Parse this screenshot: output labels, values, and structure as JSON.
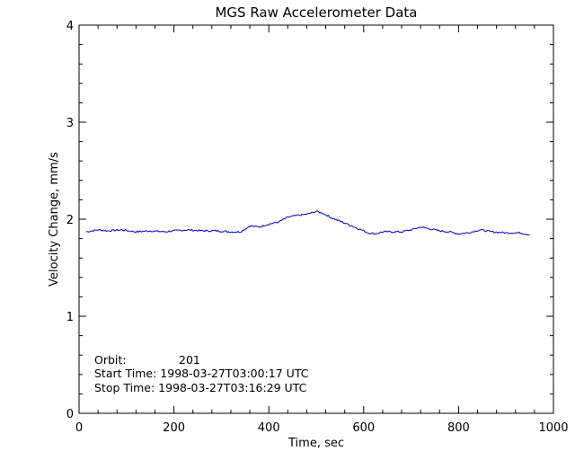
{
  "chart_data": {
    "type": "line",
    "title": "MGS Raw Accelerometer Data",
    "xlabel": "Time, sec",
    "ylabel": "Velocity Change, mm/s",
    "xlim": [
      0,
      1000
    ],
    "ylim": [
      0,
      4
    ],
    "xticks": [
      0,
      200,
      400,
      600,
      800,
      1000
    ],
    "yticks": [
      0,
      1,
      2,
      3,
      4
    ],
    "xtick_labels": [
      "0",
      "200",
      "400",
      "600",
      "800",
      "1000"
    ],
    "ytick_labels": [
      "0",
      "1",
      "2",
      "3",
      "4"
    ],
    "grid": false,
    "line_color": "#0000cc",
    "series": [
      {
        "x": [
          15,
          40,
          60,
          90,
          120,
          150,
          180,
          200,
          230,
          260,
          290,
          320,
          340,
          360,
          380,
          400,
          420,
          440,
          460,
          480,
          500,
          515,
          530,
          550,
          570,
          590,
          610,
          625,
          640,
          660,
          680,
          700,
          720,
          740,
          760,
          780,
          800,
          820,
          845,
          870,
          900,
          930,
          950
        ],
        "y": [
          1.87,
          1.89,
          1.88,
          1.89,
          1.87,
          1.88,
          1.87,
          1.88,
          1.89,
          1.88,
          1.88,
          1.87,
          1.87,
          1.93,
          1.92,
          1.95,
          1.97,
          2.02,
          2.04,
          2.05,
          2.08,
          2.06,
          2.02,
          1.98,
          1.94,
          1.9,
          1.86,
          1.85,
          1.87,
          1.87,
          1.87,
          1.89,
          1.92,
          1.9,
          1.88,
          1.87,
          1.85,
          1.86,
          1.89,
          1.87,
          1.86,
          1.86,
          1.84
        ]
      }
    ]
  },
  "annotations": {
    "orbit_label": "Orbit:",
    "orbit_value": "201",
    "start_time": "Start Time: 1998-03-27T03:00:17 UTC",
    "stop_time": "Stop Time: 1998-03-27T03:16:29 UTC"
  }
}
